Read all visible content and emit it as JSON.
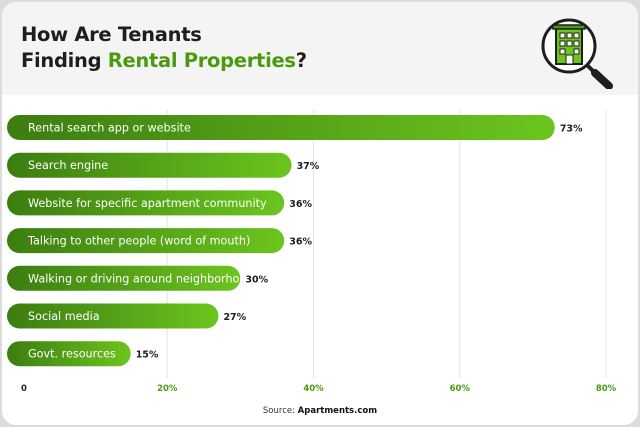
{
  "header": {
    "title_line1": "How Are Tenants",
    "title_line2_plain": "Finding ",
    "title_line2_highlight": "Rental Properties",
    "title_line2_end": "?",
    "icon": "building-magnifier-icon"
  },
  "colors": {
    "accent": "#4a9a0e",
    "bar_dark": "#3c7d10",
    "bar_light": "#6cc51e",
    "tick_green": "#4a9a0e"
  },
  "chart_data": {
    "type": "bar",
    "orientation": "horizontal",
    "categories": [
      "Rental search app or website",
      "Search engine",
      "Website for specific apartment community",
      "Talking to other people (word of mouth)",
      "Walking or driving around neighborhoods",
      "Social media",
      "Govt. resources"
    ],
    "values": [
      73,
      37,
      36,
      36,
      30,
      27,
      15
    ],
    "value_labels": [
      "73%",
      "37%",
      "36%",
      "36%",
      "30%",
      "27%",
      "15%"
    ],
    "xlim": [
      0,
      80
    ],
    "xticks": [
      0,
      20,
      40,
      60,
      80
    ],
    "xtick_labels": [
      "0",
      "20%",
      "40%",
      "60%",
      "80%"
    ],
    "grid": true
  },
  "footer": {
    "source_prefix": "Source: ",
    "source_name": "Apartments.com"
  }
}
